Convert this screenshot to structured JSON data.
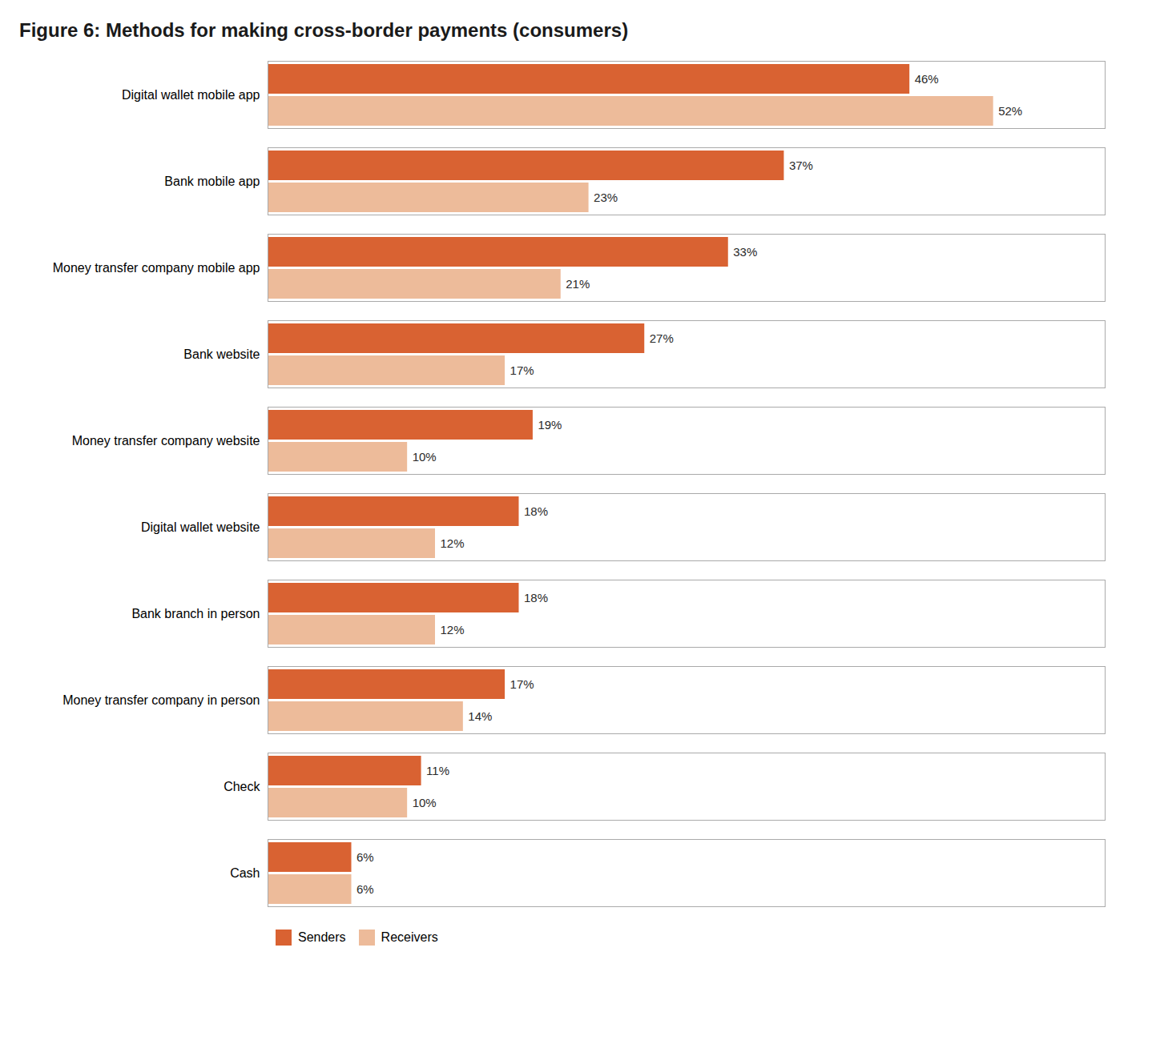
{
  "chart_data": {
    "type": "bar",
    "orientation": "horizontal",
    "title": "Figure 6: Methods for making cross-border payments (consumers)",
    "categories": [
      "Digital wallet mobile app",
      "Bank mobile app",
      "Money transfer company mobile app",
      "Bank website",
      "Money transfer company website",
      "Digital wallet website",
      "Bank branch in person",
      "Money transfer company in person",
      "Check",
      "Cash"
    ],
    "series": [
      {
        "name": "Senders",
        "color": "#D96232",
        "values": [
          46,
          37,
          33,
          27,
          19,
          18,
          18,
          17,
          11,
          6
        ],
        "value_labels": [
          "46%",
          "37%",
          "33%",
          "27%",
          "19%",
          "18%",
          "18%",
          "17%",
          "11%",
          "6%"
        ]
      },
      {
        "name": "Receivers",
        "color": "#EDBB9A",
        "values": [
          52,
          23,
          21,
          17,
          10,
          12,
          12,
          14,
          10,
          6
        ],
        "value_labels": [
          "52%",
          "23%",
          "21%",
          "17%",
          "10%",
          "12%",
          "12%",
          "14%",
          "10%",
          "6%"
        ]
      }
    ],
    "xlim": [
      0,
      60
    ],
    "tick_labels": "y",
    "data_labels": true,
    "grid": false,
    "legend": "bottom"
  }
}
